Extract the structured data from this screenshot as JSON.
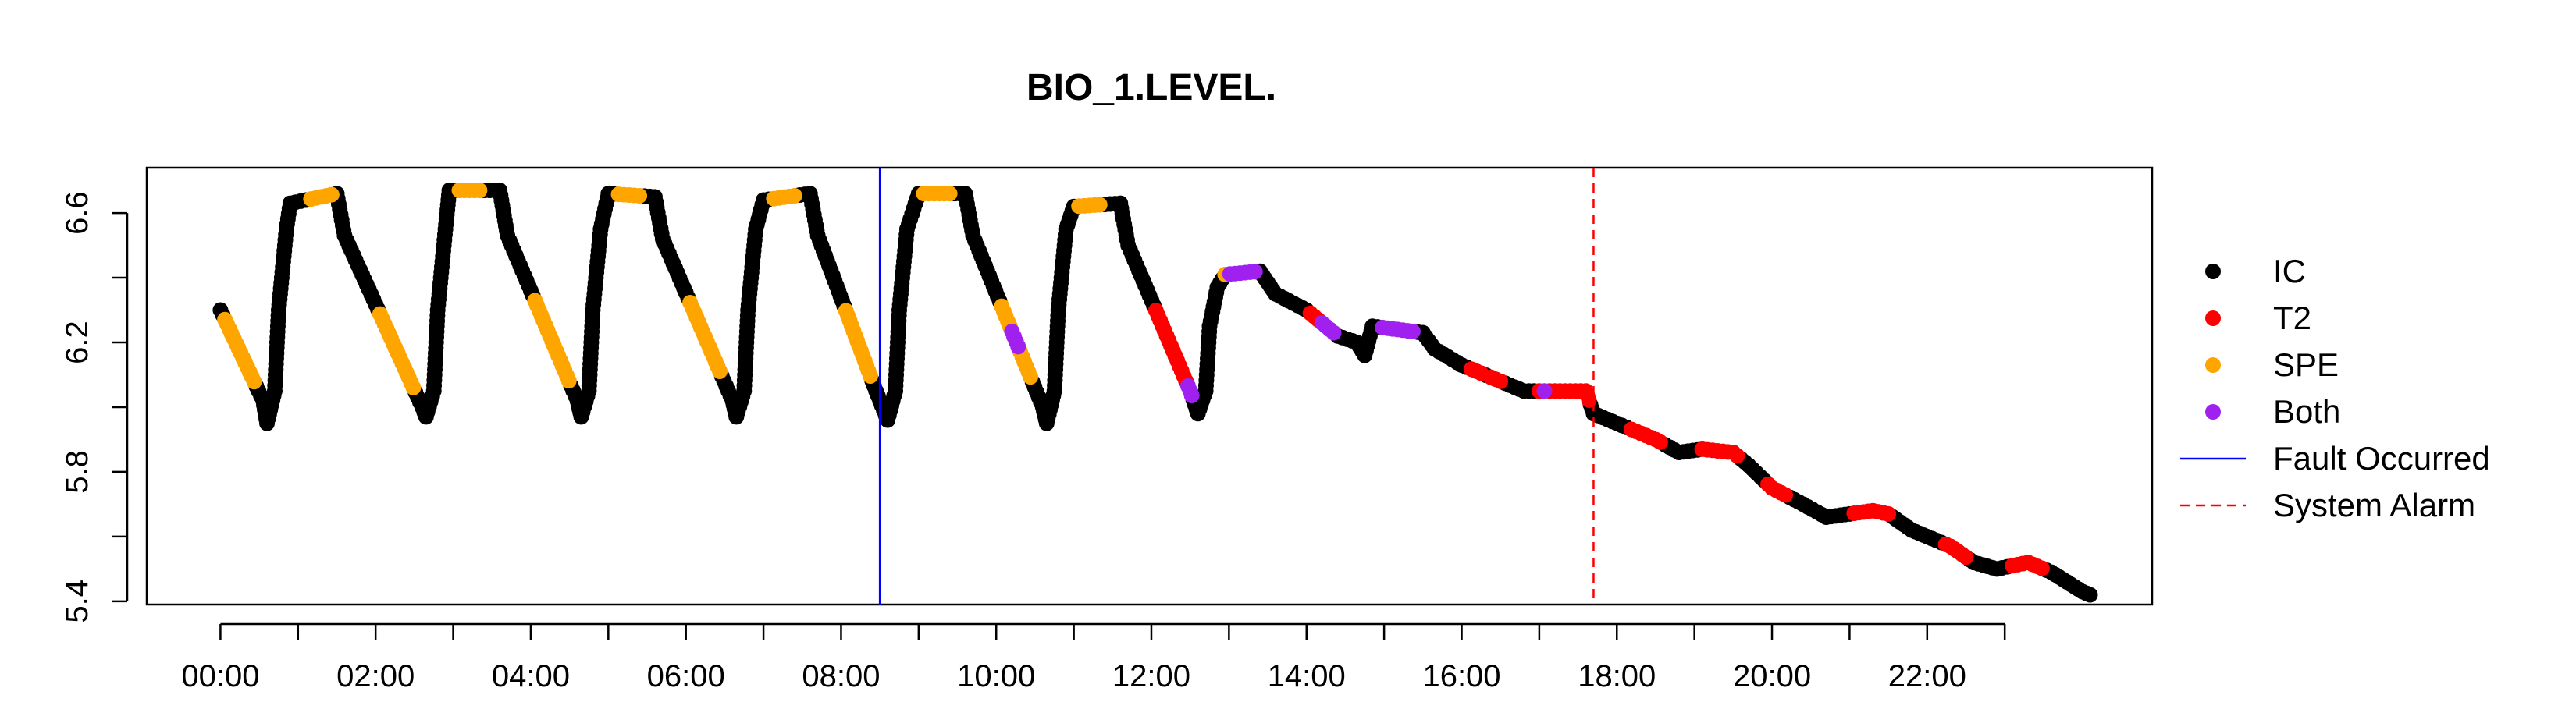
{
  "chart_data": {
    "type": "scatter",
    "title": "BIO_1.LEVEL.",
    "xlabel": "",
    "ylabel": "",
    "x_unit": "hours",
    "xlim": [
      -0.95,
      24.9
    ],
    "ylim": [
      5.39,
      6.74
    ],
    "x_ticks": [
      {
        "value": 0,
        "label": "00:00"
      },
      {
        "value": 1,
        "label": ""
      },
      {
        "value": 2,
        "label": "02:00"
      },
      {
        "value": 3,
        "label": ""
      },
      {
        "value": 4,
        "label": "04:00"
      },
      {
        "value": 5,
        "label": ""
      },
      {
        "value": 6,
        "label": "06:00"
      },
      {
        "value": 7,
        "label": ""
      },
      {
        "value": 8,
        "label": "08:00"
      },
      {
        "value": 9,
        "label": ""
      },
      {
        "value": 10,
        "label": "10:00"
      },
      {
        "value": 11,
        "label": ""
      },
      {
        "value": 12,
        "label": "12:00"
      },
      {
        "value": 13,
        "label": ""
      },
      {
        "value": 14,
        "label": "14:00"
      },
      {
        "value": 15,
        "label": ""
      },
      {
        "value": 16,
        "label": "16:00"
      },
      {
        "value": 17,
        "label": ""
      },
      {
        "value": 18,
        "label": "18:00"
      },
      {
        "value": 19,
        "label": ""
      },
      {
        "value": 20,
        "label": "20:00"
      },
      {
        "value": 21,
        "label": ""
      },
      {
        "value": 22,
        "label": "22:00"
      },
      {
        "value": 23,
        "label": ""
      }
    ],
    "y_ticks": [
      {
        "value": 5.4,
        "label": "5.4"
      },
      {
        "value": 5.6,
        "label": ""
      },
      {
        "value": 5.8,
        "label": "5.8"
      },
      {
        "value": 6.0,
        "label": ""
      },
      {
        "value": 6.2,
        "label": "6.2"
      },
      {
        "value": 6.4,
        "label": ""
      },
      {
        "value": 6.6,
        "label": "6.6"
      }
    ],
    "colors": {
      "IC": "#000000",
      "T2": "#ff0000",
      "SPE": "#ffa500",
      "Both": "#a020f0",
      "fault": "#0000ff",
      "alarm": "#ff0000"
    },
    "trace": [
      {
        "x": 0.0,
        "y": 6.3
      },
      {
        "x": 0.55,
        "y": 6.02
      },
      {
        "x": 0.6,
        "y": 5.95
      },
      {
        "x": 0.7,
        "y": 6.05
      },
      {
        "x": 0.75,
        "y": 6.3
      },
      {
        "x": 0.85,
        "y": 6.55
      },
      {
        "x": 0.9,
        "y": 6.63
      },
      {
        "x": 1.5,
        "y": 6.66
      },
      {
        "x": 1.6,
        "y": 6.53
      },
      {
        "x": 2.6,
        "y": 6.0
      },
      {
        "x": 2.65,
        "y": 5.97
      },
      {
        "x": 2.75,
        "y": 6.05
      },
      {
        "x": 2.8,
        "y": 6.3
      },
      {
        "x": 2.9,
        "y": 6.55
      },
      {
        "x": 2.95,
        "y": 6.67
      },
      {
        "x": 3.6,
        "y": 6.67
      },
      {
        "x": 3.7,
        "y": 6.53
      },
      {
        "x": 4.6,
        "y": 6.02
      },
      {
        "x": 4.65,
        "y": 5.97
      },
      {
        "x": 4.75,
        "y": 6.05
      },
      {
        "x": 4.8,
        "y": 6.3
      },
      {
        "x": 4.9,
        "y": 6.55
      },
      {
        "x": 5.0,
        "y": 6.66
      },
      {
        "x": 5.6,
        "y": 6.65
      },
      {
        "x": 5.7,
        "y": 6.52
      },
      {
        "x": 6.6,
        "y": 6.02
      },
      {
        "x": 6.65,
        "y": 5.97
      },
      {
        "x": 6.75,
        "y": 6.05
      },
      {
        "x": 6.8,
        "y": 6.3
      },
      {
        "x": 6.9,
        "y": 6.55
      },
      {
        "x": 7.0,
        "y": 6.64
      },
      {
        "x": 7.6,
        "y": 6.66
      },
      {
        "x": 7.7,
        "y": 6.53
      },
      {
        "x": 8.45,
        "y": 6.05
      },
      {
        "x": 8.6,
        "y": 5.96
      },
      {
        "x": 8.7,
        "y": 6.05
      },
      {
        "x": 8.75,
        "y": 6.3
      },
      {
        "x": 8.85,
        "y": 6.55
      },
      {
        "x": 9.0,
        "y": 6.66
      },
      {
        "x": 9.6,
        "y": 6.66
      },
      {
        "x": 9.7,
        "y": 6.53
      },
      {
        "x": 10.6,
        "y": 6.0
      },
      {
        "x": 10.65,
        "y": 5.95
      },
      {
        "x": 10.75,
        "y": 6.05
      },
      {
        "x": 10.8,
        "y": 6.3
      },
      {
        "x": 10.9,
        "y": 6.55
      },
      {
        "x": 11.0,
        "y": 6.62
      },
      {
        "x": 11.6,
        "y": 6.63
      },
      {
        "x": 11.7,
        "y": 6.5
      },
      {
        "x": 12.5,
        "y": 6.05
      },
      {
        "x": 12.6,
        "y": 5.98
      },
      {
        "x": 12.7,
        "y": 6.05
      },
      {
        "x": 12.75,
        "y": 6.25
      },
      {
        "x": 12.85,
        "y": 6.37
      },
      {
        "x": 12.95,
        "y": 6.41
      },
      {
        "x": 13.4,
        "y": 6.42
      },
      {
        "x": 13.6,
        "y": 6.35
      },
      {
        "x": 14.0,
        "y": 6.3
      },
      {
        "x": 14.4,
        "y": 6.22
      },
      {
        "x": 14.65,
        "y": 6.2
      },
      {
        "x": 14.75,
        "y": 6.16
      },
      {
        "x": 14.85,
        "y": 6.25
      },
      {
        "x": 15.5,
        "y": 6.23
      },
      {
        "x": 15.65,
        "y": 6.18
      },
      {
        "x": 16.0,
        "y": 6.13
      },
      {
        "x": 16.5,
        "y": 6.08
      },
      {
        "x": 16.8,
        "y": 6.05
      },
      {
        "x": 17.6,
        "y": 6.05
      },
      {
        "x": 17.7,
        "y": 5.98
      },
      {
        "x": 18.0,
        "y": 5.95
      },
      {
        "x": 18.5,
        "y": 5.9
      },
      {
        "x": 18.8,
        "y": 5.86
      },
      {
        "x": 19.1,
        "y": 5.87
      },
      {
        "x": 19.5,
        "y": 5.86
      },
      {
        "x": 19.7,
        "y": 5.82
      },
      {
        "x": 20.0,
        "y": 5.75
      },
      {
        "x": 20.4,
        "y": 5.7
      },
      {
        "x": 20.7,
        "y": 5.66
      },
      {
        "x": 21.0,
        "y": 5.67
      },
      {
        "x": 21.3,
        "y": 5.68
      },
      {
        "x": 21.5,
        "y": 5.67
      },
      {
        "x": 21.8,
        "y": 5.62
      },
      {
        "x": 22.0,
        "y": 5.6
      },
      {
        "x": 22.3,
        "y": 5.57
      },
      {
        "x": 22.6,
        "y": 5.52
      },
      {
        "x": 22.9,
        "y": 5.5
      },
      {
        "x": 23.3,
        "y": 5.52
      },
      {
        "x": 23.6,
        "y": 5.49
      },
      {
        "x": 23.8,
        "y": 5.46
      },
      {
        "x": 24.0,
        "y": 5.43
      },
      {
        "x": 24.1,
        "y": 5.42
      }
    ],
    "highlight_ranges": [
      {
        "series": "SPE",
        "from": 0.05,
        "to": 0.45
      },
      {
        "series": "SPE",
        "from": 1.15,
        "to": 1.45
      },
      {
        "series": "SPE",
        "from": 2.05,
        "to": 2.5
      },
      {
        "series": "SPE",
        "from": 3.05,
        "to": 3.4
      },
      {
        "series": "SPE",
        "from": 4.05,
        "to": 4.5
      },
      {
        "series": "SPE",
        "from": 5.1,
        "to": 5.4
      },
      {
        "series": "SPE",
        "from": 6.05,
        "to": 6.45
      },
      {
        "series": "SPE",
        "from": 7.1,
        "to": 7.4
      },
      {
        "series": "SPE",
        "from": 8.05,
        "to": 8.4
      },
      {
        "series": "SPE",
        "from": 9.05,
        "to": 9.45
      },
      {
        "series": "SPE",
        "from": 10.05,
        "to": 10.2
      },
      {
        "series": "Both",
        "from": 10.2,
        "to": 10.3
      },
      {
        "series": "SPE",
        "from": 10.3,
        "to": 10.45
      },
      {
        "series": "SPE",
        "from": 11.05,
        "to": 11.35
      },
      {
        "series": "T2",
        "from": 12.05,
        "to": 12.45
      },
      {
        "series": "Both",
        "from": 12.45,
        "to": 12.52
      },
      {
        "series": "SPE",
        "from": 12.92,
        "to": 13.0
      },
      {
        "series": "Both",
        "from": 13.0,
        "to": 13.35
      },
      {
        "series": "T2",
        "from": 14.05,
        "to": 14.15
      },
      {
        "series": "Both",
        "from": 14.15,
        "to": 14.35
      },
      {
        "series": "Both",
        "from": 14.95,
        "to": 15.4
      },
      {
        "series": "T2",
        "from": 16.1,
        "to": 16.25
      },
      {
        "series": "T2",
        "from": 16.35,
        "to": 16.5
      },
      {
        "series": "T2",
        "from": 16.95,
        "to": 17.05
      },
      {
        "series": "Both",
        "from": 17.05,
        "to": 17.12
      },
      {
        "series": "T2",
        "from": 17.12,
        "to": 17.65
      },
      {
        "series": "T2",
        "from": 18.15,
        "to": 18.6
      },
      {
        "series": "T2",
        "from": 19.05,
        "to": 19.55
      },
      {
        "series": "T2",
        "from": 19.95,
        "to": 20.2
      },
      {
        "series": "T2",
        "from": 21.05,
        "to": 21.5
      },
      {
        "series": "T2",
        "from": 22.2,
        "to": 22.5
      },
      {
        "series": "T2",
        "from": 23.1,
        "to": 23.5
      }
    ],
    "series": [
      {
        "name": "IC"
      },
      {
        "name": "T2"
      },
      {
        "name": "SPE"
      },
      {
        "name": "Both"
      }
    ],
    "vlines": [
      {
        "name": "Fault Occurred",
        "x": 8.5,
        "style": "solid",
        "color_key": "fault"
      },
      {
        "name": "System Alarm",
        "x": 17.7,
        "style": "dashed",
        "color_key": "alarm"
      }
    ],
    "legend": {
      "placement": "right",
      "entries": [
        {
          "label": "IC",
          "kind": "point",
          "color_key": "IC"
        },
        {
          "label": "T2",
          "kind": "point",
          "color_key": "T2"
        },
        {
          "label": "SPE",
          "kind": "point",
          "color_key": "SPE"
        },
        {
          "label": "Both",
          "kind": "point",
          "color_key": "Both"
        },
        {
          "label": "Fault Occurred",
          "kind": "solid-line",
          "color_key": "fault"
        },
        {
          "label": "System Alarm",
          "kind": "dashed-line",
          "color_key": "alarm"
        }
      ]
    }
  }
}
